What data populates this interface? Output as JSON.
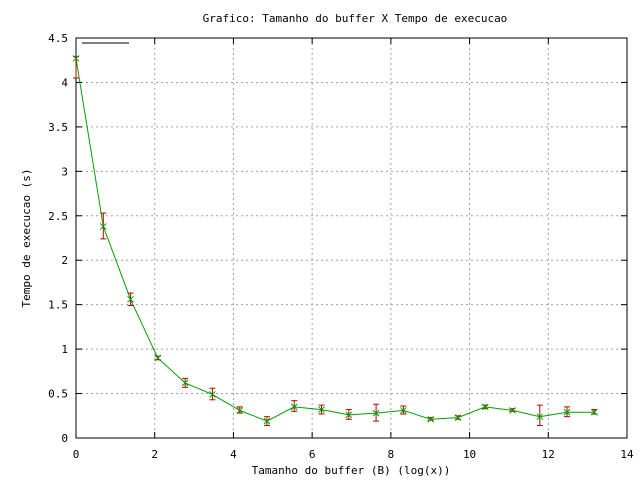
{
  "chart_data": {
    "type": "line",
    "title": "Grafico: Tamanho do buffer X Tempo de execucao",
    "xlabel": "Tamanho do buffer (B) (log(x))",
    "ylabel": "Tempo de execucao (s)",
    "xlim": [
      0,
      14
    ],
    "ylim": [
      0,
      4.5
    ],
    "x_ticks": [
      0,
      2,
      4,
      6,
      8,
      10,
      12,
      14
    ],
    "x_tick_labels": [
      "0",
      "2",
      "4",
      "6",
      "8",
      "10",
      "12",
      "14"
    ],
    "y_ticks": [
      0,
      0.5,
      1,
      1.5,
      2,
      2.5,
      3,
      3.5,
      4,
      4.5
    ],
    "y_tick_labels": [
      "0",
      "0.5",
      "1",
      "1.5",
      "2",
      "2.5",
      "3",
      "3.5",
      "4",
      "4.5"
    ],
    "grid": true,
    "legend": "top-left",
    "series": [
      {
        "name": "",
        "color": "#00a000",
        "errorbar_color": "#c00000",
        "marker_color": "#c00000",
        "x": [
          0,
          0.693,
          1.386,
          2.079,
          2.773,
          3.466,
          4.159,
          4.852,
          5.545,
          6.238,
          6.931,
          7.625,
          8.318,
          9.011,
          9.704,
          10.397,
          11.09,
          11.784,
          12.477,
          13.17
        ],
        "y": [
          4.27,
          2.38,
          1.56,
          0.9,
          0.62,
          0.49,
          0.31,
          0.19,
          0.35,
          0.32,
          0.26,
          0.28,
          0.31,
          0.21,
          0.23,
          0.35,
          0.31,
          0.24,
          0.29,
          0.29
        ],
        "yerr_low": [
          4.05,
          2.24,
          1.49,
          0.88,
          0.57,
          0.43,
          0.28,
          0.14,
          0.3,
          0.27,
          0.21,
          0.19,
          0.27,
          0.2,
          0.21,
          0.33,
          0.3,
          0.14,
          0.24,
          0.27
        ],
        "yerr_high": [
          4.29,
          2.53,
          1.63,
          0.92,
          0.67,
          0.56,
          0.35,
          0.24,
          0.42,
          0.37,
          0.32,
          0.38,
          0.36,
          0.23,
          0.25,
          0.37,
          0.33,
          0.37,
          0.35,
          0.32
        ]
      }
    ]
  }
}
